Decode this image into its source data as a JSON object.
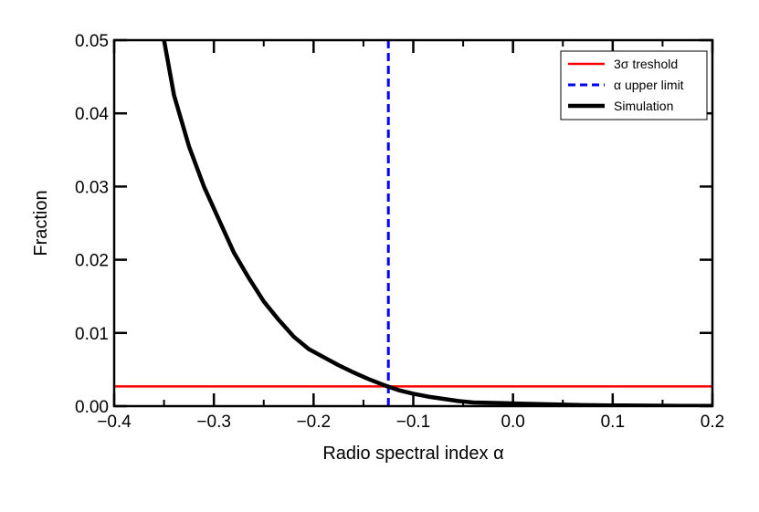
{
  "chart_data": {
    "type": "line",
    "xlabel": "Radio spectral index α",
    "ylabel": "Fraction",
    "xlim": [
      -0.4,
      0.2
    ],
    "ylim": [
      0.0,
      0.05
    ],
    "x_ticks": [
      -0.4,
      -0.3,
      -0.2,
      -0.1,
      0.0,
      0.1,
      0.2
    ],
    "x_tick_labels": [
      "−0.4",
      "−0.3",
      "−0.2",
      "−0.1",
      "0.0",
      "0.1",
      "0.2"
    ],
    "y_ticks": [
      0.0,
      0.01,
      0.02,
      0.03,
      0.04,
      0.05
    ],
    "y_tick_labels": [
      "0.00",
      "0.01",
      "0.02",
      "0.03",
      "0.04",
      "0.05"
    ],
    "grid": false,
    "legend_position": "top-right",
    "series": [
      {
        "name": "3σ treshold",
        "style": "solid",
        "color": "#ff0000",
        "kind": "horizontal",
        "y": 0.0027
      },
      {
        "name": "α upper limit",
        "style": "dashed",
        "color": "#0000ff",
        "kind": "vertical",
        "x": -0.125
      },
      {
        "name": "Simulation",
        "style": "solid",
        "color": "#000000",
        "kind": "curve",
        "x": [
          -0.35,
          -0.34,
          -0.325,
          -0.31,
          -0.295,
          -0.28,
          -0.265,
          -0.25,
          -0.235,
          -0.22,
          -0.205,
          -0.19,
          -0.175,
          -0.16,
          -0.145,
          -0.13,
          -0.115,
          -0.1,
          -0.085,
          -0.07,
          -0.055,
          -0.04,
          -0.025,
          -0.01,
          0.005,
          0.02,
          0.035,
          0.05,
          0.065,
          0.08,
          0.095,
          0.11,
          0.125,
          0.14,
          0.155,
          0.17,
          0.185,
          0.2
        ],
        "y": [
          0.05,
          0.0425,
          0.0355,
          0.03,
          0.0255,
          0.021,
          0.0175,
          0.0143,
          0.0118,
          0.0095,
          0.0078,
          0.0067,
          0.0056,
          0.0046,
          0.0037,
          0.0029,
          0.0022,
          0.0017,
          0.0013,
          0.001,
          0.0007,
          0.0005,
          0.00045,
          0.0004,
          0.00035,
          0.0003,
          0.00025,
          0.0002,
          0.00015,
          0.00012,
          0.0001,
          0.0001,
          8e-05,
          6e-05,
          5e-05,
          4e-05,
          3e-05,
          2e-05
        ]
      }
    ]
  }
}
